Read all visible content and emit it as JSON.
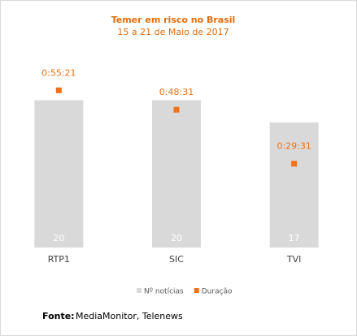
{
  "chart_data": {
    "type": "bar-point",
    "title": "Temer em risco no Brasil",
    "subtitle": "15 a 21 de Maio de 2017",
    "categories": [
      "RTP1",
      "SIC",
      "TVI"
    ],
    "series": [
      {
        "name": "Nº notícias",
        "color": "#d9d9d9",
        "values": [
          20,
          20,
          17
        ]
      },
      {
        "name": "Duração",
        "color": "#f07116",
        "axis": "y2",
        "values": [
          3321,
          2911,
          1771
        ],
        "value_labels": [
          "0:55:21",
          "0:48:31",
          "0:29:31"
        ]
      }
    ],
    "ylim": [
      0,
      27
    ],
    "y2lim": [
      0,
      4200
    ],
    "grid": false,
    "legend": "bottom",
    "source_label": "Fonte:",
    "source": "MediaMonitor, Telenews"
  }
}
